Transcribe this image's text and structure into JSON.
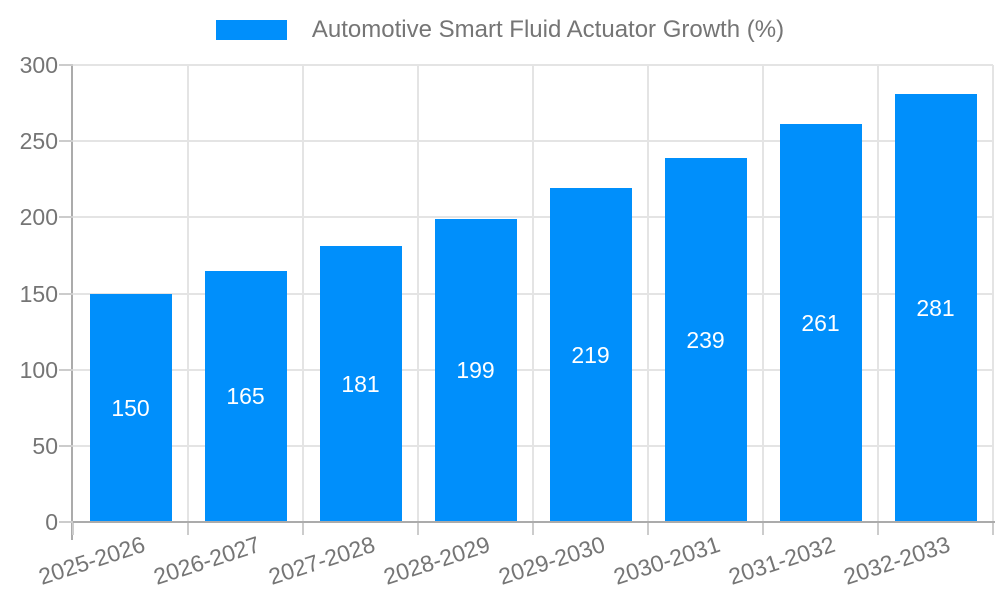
{
  "chart_data": {
    "type": "bar",
    "title": "Automotive Smart Fluid Actuator Growth (%)",
    "categories": [
      "2025-2026",
      "2026-2027",
      "2027-2028",
      "2028-2029",
      "2029-2030",
      "2030-2031",
      "2031-2032",
      "2032-2033"
    ],
    "values": [
      150,
      165,
      181,
      199,
      219,
      239,
      261,
      281
    ],
    "xlabel": "",
    "ylabel": "",
    "ylim": [
      0,
      300
    ],
    "yticks": [
      0,
      50,
      100,
      150,
      200,
      250,
      300
    ],
    "grid": true,
    "legend_position": "top",
    "value_labels": "inside-center",
    "colors": {
      "bar": "#008FFB",
      "value_label": "#ffffff",
      "axis_label": "#757575",
      "legend_text": "#757575",
      "gridline": "#e4e4e4",
      "axis_line": "#ababab",
      "tick": "#cccccc",
      "background": "#ffffff"
    }
  }
}
